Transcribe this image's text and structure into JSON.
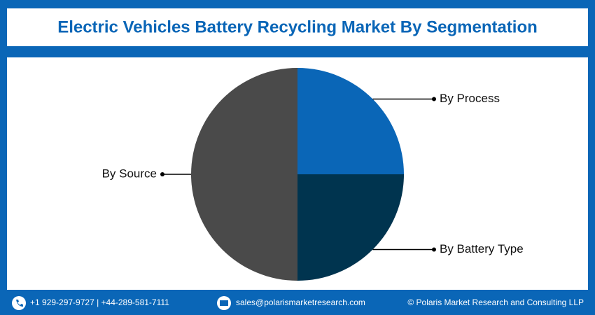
{
  "chart_data": {
    "type": "pie",
    "title": "Electric Vehicles Battery Recycling Market By Segmentation",
    "categories": [
      "By Process",
      "By Battery Type",
      "By Source"
    ],
    "values": [
      25,
      25,
      50
    ],
    "colors": [
      "#0a66b7",
      "#00344f",
      "#4a4a4a"
    ]
  },
  "footer": {
    "phone": "+1 929-297-9727 | +44-289-581-7111",
    "email": "sales@polarismarketresearch.com",
    "copyright": "© Polaris Market Research and Consulting LLP"
  }
}
